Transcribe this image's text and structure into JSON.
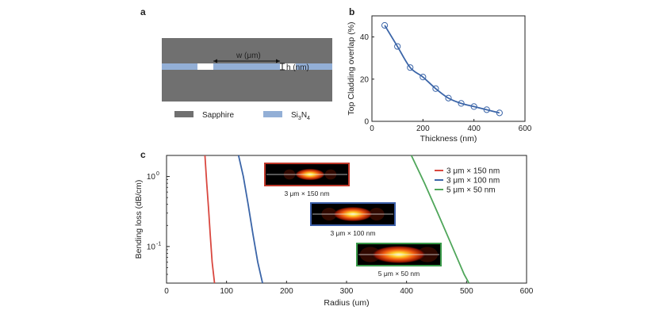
{
  "panels": {
    "a": {
      "label": "a",
      "dimension_w": "w (μm)",
      "dimension_h": "h (nm)",
      "legend": [
        {
          "name": "Sapphire",
          "color": "#707070"
        },
        {
          "name": "Si",
          "sub": "3",
          "name2": "N",
          "sub2": "4",
          "color": "#93afd6"
        }
      ]
    },
    "b": {
      "label": "b"
    },
    "c": {
      "label": "c"
    }
  },
  "chart_data": [
    {
      "type": "line",
      "panel": "b",
      "title": "",
      "xlabel": "Thickness (nm)",
      "ylabel": "Top Cladding overlap (%)",
      "xlim": [
        0,
        600
      ],
      "ylim": [
        0,
        50
      ],
      "xticks": [
        "0",
        "200",
        "400",
        "600"
      ],
      "yticks": [
        "0",
        "20",
        "40"
      ],
      "series": [
        {
          "name": "overlap",
          "color": "#3b65a8",
          "x": [
            50,
            100,
            150,
            200,
            250,
            300,
            350,
            400,
            450,
            500
          ],
          "y": [
            45.5,
            35.5,
            25.5,
            21,
            15.5,
            11,
            8.5,
            7,
            5.5,
            4
          ]
        }
      ]
    },
    {
      "type": "line",
      "panel": "c",
      "title": "",
      "xlabel": "Radius (um)",
      "ylabel": "Bending loss (dB/cm)",
      "xlim": [
        0,
        600
      ],
      "ylim": [
        0.03,
        2
      ],
      "yscale": "log",
      "xticks": [
        "0",
        "100",
        "200",
        "300",
        "400",
        "500",
        "600"
      ],
      "yticks": [
        {
          "base": "10",
          "exp": "0"
        },
        {
          "base": "10",
          "exp": "-1"
        }
      ],
      "legend": "top-right",
      "series": [
        {
          "name": "3 μm × 150 nm",
          "color": "#d9473f",
          "x": [
            64,
            67,
            70,
            73,
            76,
            80
          ],
          "y": [
            2,
            0.8,
            0.35,
            0.14,
            0.06,
            0.03
          ]
        },
        {
          "name": "3 μm × 100 nm",
          "color": "#3b65a8",
          "x": [
            120,
            128,
            136,
            144,
            152,
            160
          ],
          "y": [
            2,
            1.0,
            0.4,
            0.15,
            0.06,
            0.03
          ]
        },
        {
          "name": "5 μm × 50 nm",
          "color": "#4fa65a",
          "x": [
            408,
            430,
            452,
            474,
            496,
            504
          ],
          "y": [
            2,
            0.8,
            0.3,
            0.11,
            0.04,
            0.03
          ]
        }
      ],
      "insets": [
        {
          "label": "3 μm × 150 nm",
          "frame_color": "#c0392b"
        },
        {
          "label": "3 μm × 100 nm",
          "frame_color": "#3b5ea8"
        },
        {
          "label": "5 μm × 50 nm",
          "frame_color": "#3a9a4a"
        }
      ]
    }
  ]
}
